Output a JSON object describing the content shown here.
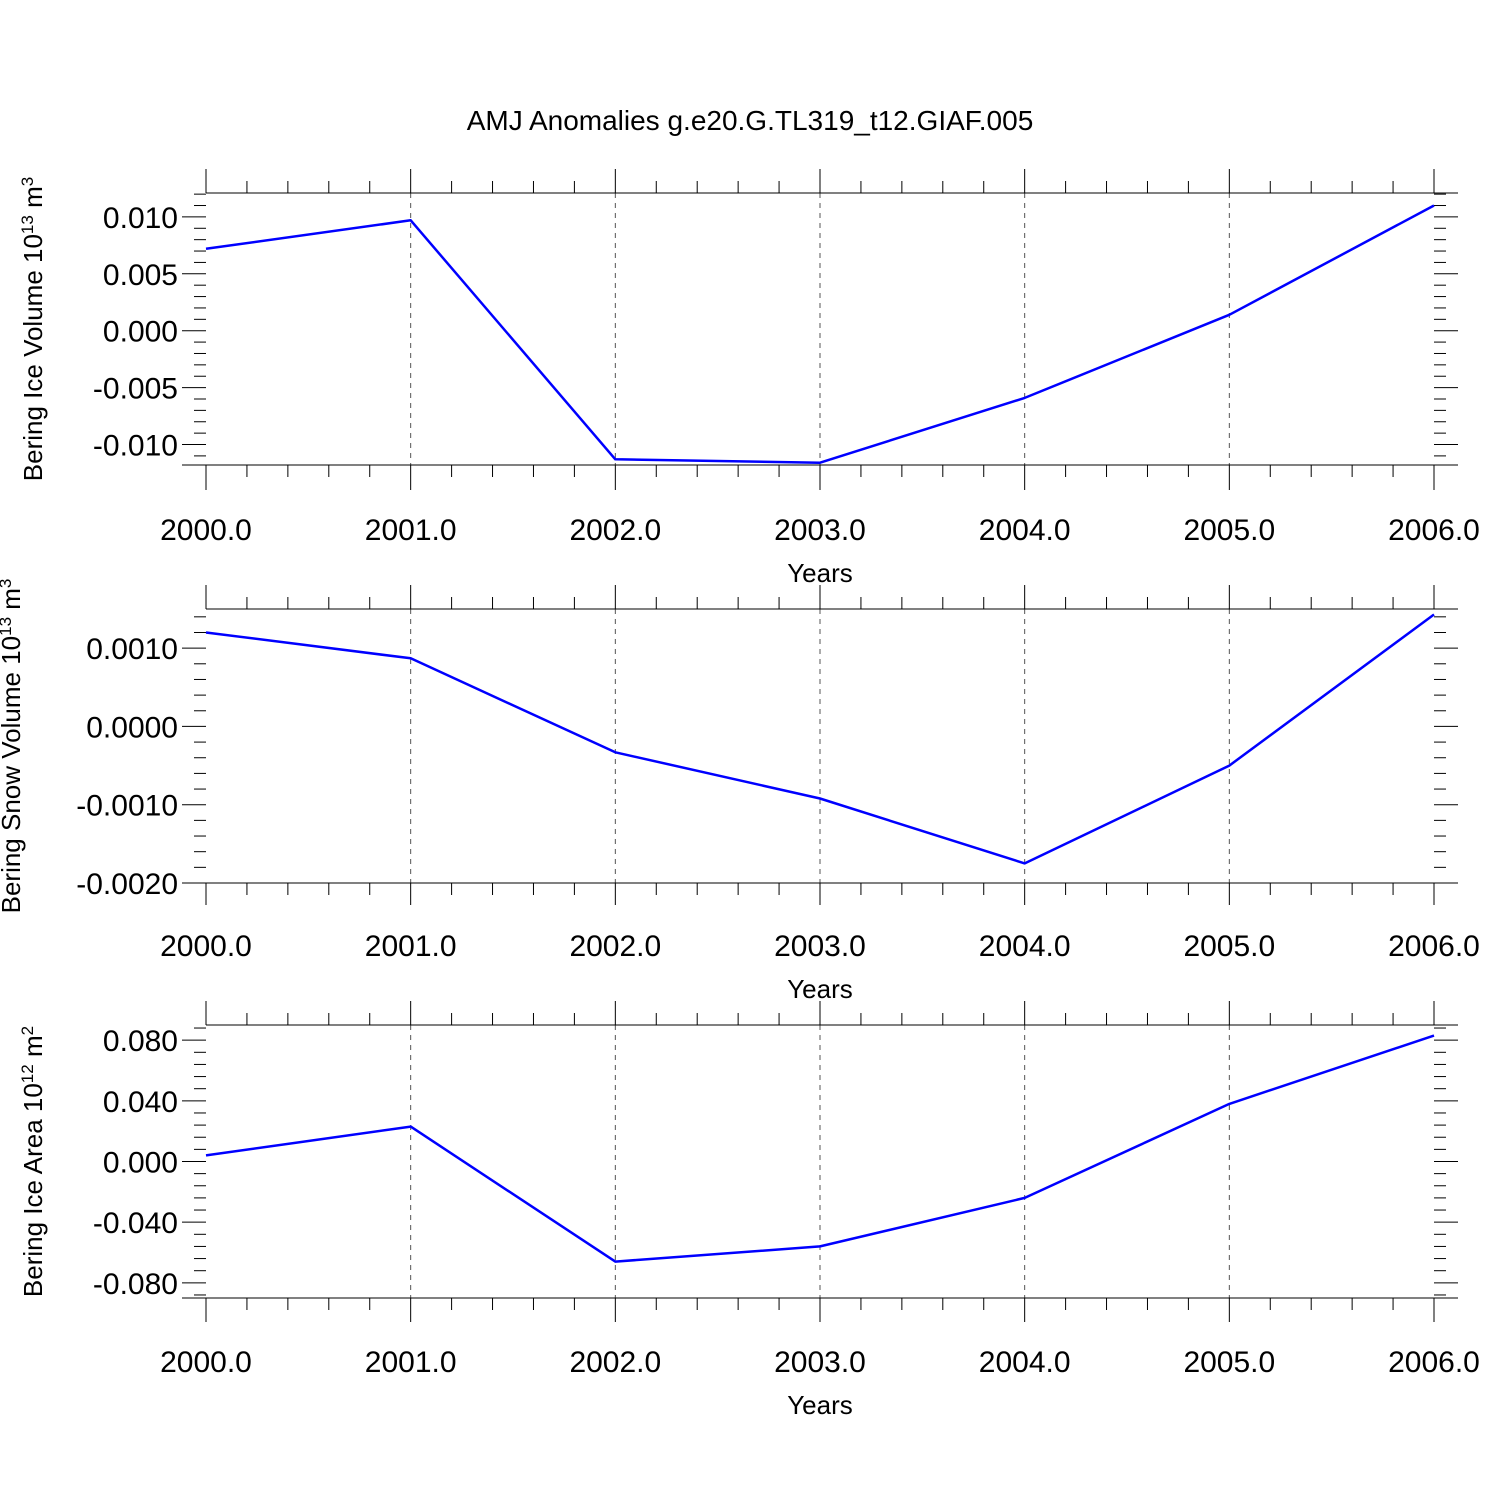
{
  "title": "AMJ Anomalies g.e20.G.TL319_t12.GIAF.005",
  "line_color": "#0000ff",
  "chart_data": [
    {
      "type": "line",
      "xlabel": "Years",
      "ylabel": {
        "base": "Bering Ice Volume 10",
        "exp": "13",
        "unit": " m",
        "unit_exp": "3"
      },
      "x": [
        2000,
        2001,
        2002,
        2003,
        2004,
        2005,
        2006
      ],
      "xticks": [
        "2000.0",
        "2001.0",
        "2002.0",
        "2003.0",
        "2004.0",
        "2005.0",
        "2006.0"
      ],
      "xlim": [
        2000,
        2006
      ],
      "values": [
        0.0072,
        0.0097,
        -0.0113,
        -0.0116,
        -0.0059,
        0.0014,
        0.011
      ],
      "ylim": [
        -0.0118,
        0.0121
      ],
      "yticks": [
        -0.01,
        -0.005,
        0.0,
        0.005,
        0.01
      ],
      "ytick_labels": [
        "-0.010",
        "-0.005",
        "0.000",
        "0.005",
        "0.010"
      ],
      "grid": "vertical dashed"
    },
    {
      "type": "line",
      "xlabel": "Years",
      "ylabel": {
        "base": "Bering Snow Volume 10",
        "exp": "13",
        "unit": " m",
        "unit_exp": "3"
      },
      "x": [
        2000,
        2001,
        2002,
        2003,
        2004,
        2005,
        2006
      ],
      "xticks": [
        "2000.0",
        "2001.0",
        "2002.0",
        "2003.0",
        "2004.0",
        "2005.0",
        "2006.0"
      ],
      "xlim": [
        2000,
        2006
      ],
      "values": [
        0.0012,
        0.00087,
        -0.00033,
        -0.00092,
        -0.00175,
        -0.0005,
        0.00143
      ],
      "ylim": [
        -0.002,
        0.0015
      ],
      "yticks": [
        -0.002,
        -0.001,
        0.0,
        0.001
      ],
      "ytick_labels": [
        "-0.0020",
        "-0.0010",
        "0.0000",
        "0.0010"
      ],
      "grid": "vertical dashed"
    },
    {
      "type": "line",
      "xlabel": "Years",
      "ylabel": {
        "base": "Bering Ice Area 10",
        "exp": "12",
        "unit": " m",
        "unit_exp": "2"
      },
      "x": [
        2000,
        2001,
        2002,
        2003,
        2004,
        2005,
        2006
      ],
      "xticks": [
        "2000.0",
        "2001.0",
        "2002.0",
        "2003.0",
        "2004.0",
        "2005.0",
        "2006.0"
      ],
      "xlim": [
        2000,
        2006
      ],
      "values": [
        0.004,
        0.023,
        -0.066,
        -0.056,
        -0.024,
        0.038,
        0.083
      ],
      "ylim": [
        -0.09,
        0.09
      ],
      "yticks": [
        -0.08,
        -0.04,
        0.0,
        0.04,
        0.08
      ],
      "ytick_labels": [
        "-0.080",
        "-0.040",
        "0.000",
        "0.040",
        "0.080"
      ],
      "grid": "vertical dashed"
    }
  ]
}
